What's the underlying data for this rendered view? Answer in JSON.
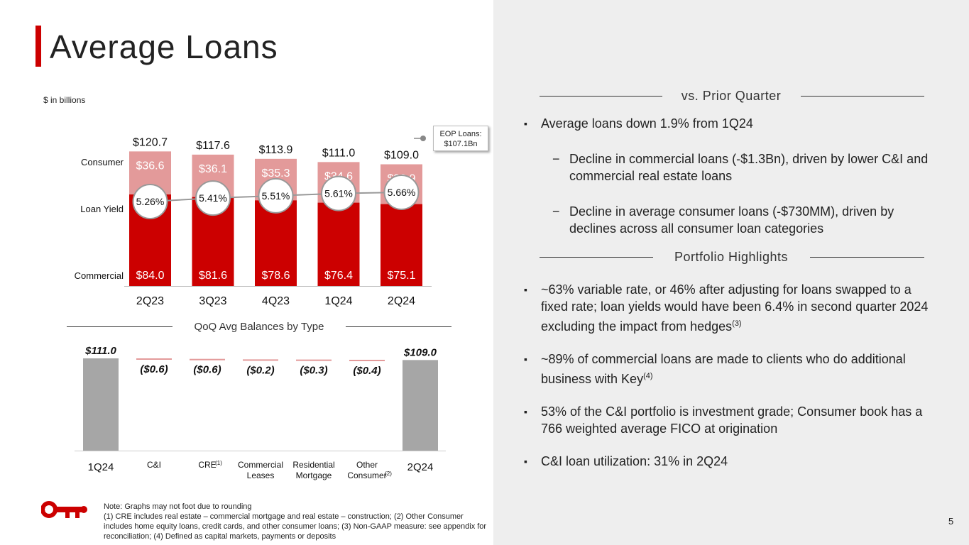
{
  "title": "Average Loans",
  "units_label": "$ in billions",
  "eop_label": "EOP Loans:",
  "eop_value": "$107.1Bn",
  "chart_data": [
    {
      "type": "bar",
      "stacked": true,
      "categories": [
        "2Q23",
        "3Q23",
        "4Q23",
        "1Q24",
        "2Q24"
      ],
      "row_labels": [
        "Consumer",
        "Loan Yield",
        "Commercial"
      ],
      "series": [
        {
          "name": "Commercial",
          "values": [
            84.0,
            81.6,
            78.6,
            76.4,
            75.1
          ],
          "labels": [
            "$84.0",
            "$81.6",
            "$78.6",
            "$76.4",
            "$75.1"
          ],
          "color": "#cc0000"
        },
        {
          "name": "Consumer",
          "values": [
            36.6,
            36.1,
            35.3,
            34.6,
            33.9
          ],
          "labels": [
            "$36.6",
            "$36.1",
            "$35.3",
            "$34.6",
            "$33.9"
          ],
          "color": "#e39a9a"
        }
      ],
      "totals": [
        "$120.7",
        "$117.6",
        "$113.9",
        "$111.0",
        "$109.0"
      ],
      "loan_yield": {
        "values": [
          5.26,
          5.41,
          5.51,
          5.61,
          5.66
        ],
        "labels": [
          "5.26%",
          "5.41%",
          "5.51%",
          "5.61%",
          "5.66%"
        ]
      },
      "ylim": [
        0,
        125
      ]
    },
    {
      "type": "bar",
      "subtype": "waterfall",
      "title": "QoQ Avg Balances by Type",
      "categories": [
        "1Q24",
        "C&I",
        "CRE",
        "Commercial Leases",
        "Residential Mortgage",
        "Other Consumer",
        "2Q24"
      ],
      "category_lines": [
        [
          "1Q24"
        ],
        [
          "C&I"
        ],
        [
          "CRE"
        ],
        [
          "Commercial",
          "Leases"
        ],
        [
          "Residential",
          "Mortgage"
        ],
        [
          "Other",
          "Consumer"
        ],
        [
          "2Q24"
        ]
      ],
      "category_notes": [
        "",
        "",
        "(1)",
        "",
        "",
        "(2)",
        ""
      ],
      "values": [
        111.0,
        -0.6,
        -0.6,
        -0.2,
        -0.3,
        -0.4,
        109.0
      ],
      "labels": [
        "$111.0",
        "($0.6)",
        "($0.6)",
        "($0.2)",
        "($0.3)",
        "($0.4)",
        "$109.0"
      ],
      "total_color": "#a6a6a6",
      "decrease_color": "#e39a9a",
      "ylim": [
        0,
        111
      ]
    }
  ],
  "right": {
    "section1": "vs. Prior Quarter",
    "b1": "Average loans down 1.9% from 1Q24",
    "s1": "Decline in commercial loans (-$1.3Bn), driven by lower C&I and commercial real estate loans",
    "s2": "Decline in average consumer loans (-$730MM), driven by declines across all consumer loan categories",
    "section2": "Portfolio Highlights",
    "b2": "~63% variable rate, or 46% after adjusting for loans swapped to a fixed rate; loan yields would have been 6.4% in second quarter 2024 excluding the impact from hedges",
    "b2_note": "(3)",
    "b3": "~89% of commercial loans are made to clients who do additional business with Key",
    "b3_note": "(4)",
    "b4": "53% of the C&I portfolio is investment grade; Consumer book has a 766 weighted average FICO at origination",
    "b5": "C&I loan utilization: 31% in 2Q24"
  },
  "note_lines": [
    "Note: Graphs may not foot due to rounding",
    "(1) CRE includes real estate – commercial mortgage and real estate – construction; (2) Other Consumer includes home equity loans, credit cards, and other consumer loans; (3) Non-GAAP measure: see appendix for reconciliation; (4) Defined as capital markets, payments or deposits"
  ],
  "page_number": "5",
  "colors": {
    "accent": "#cc0000",
    "consumer": "#e39a9a",
    "total": "#a6a6a6",
    "panel": "#eeeeee"
  },
  "logo_icon": "key-icon"
}
